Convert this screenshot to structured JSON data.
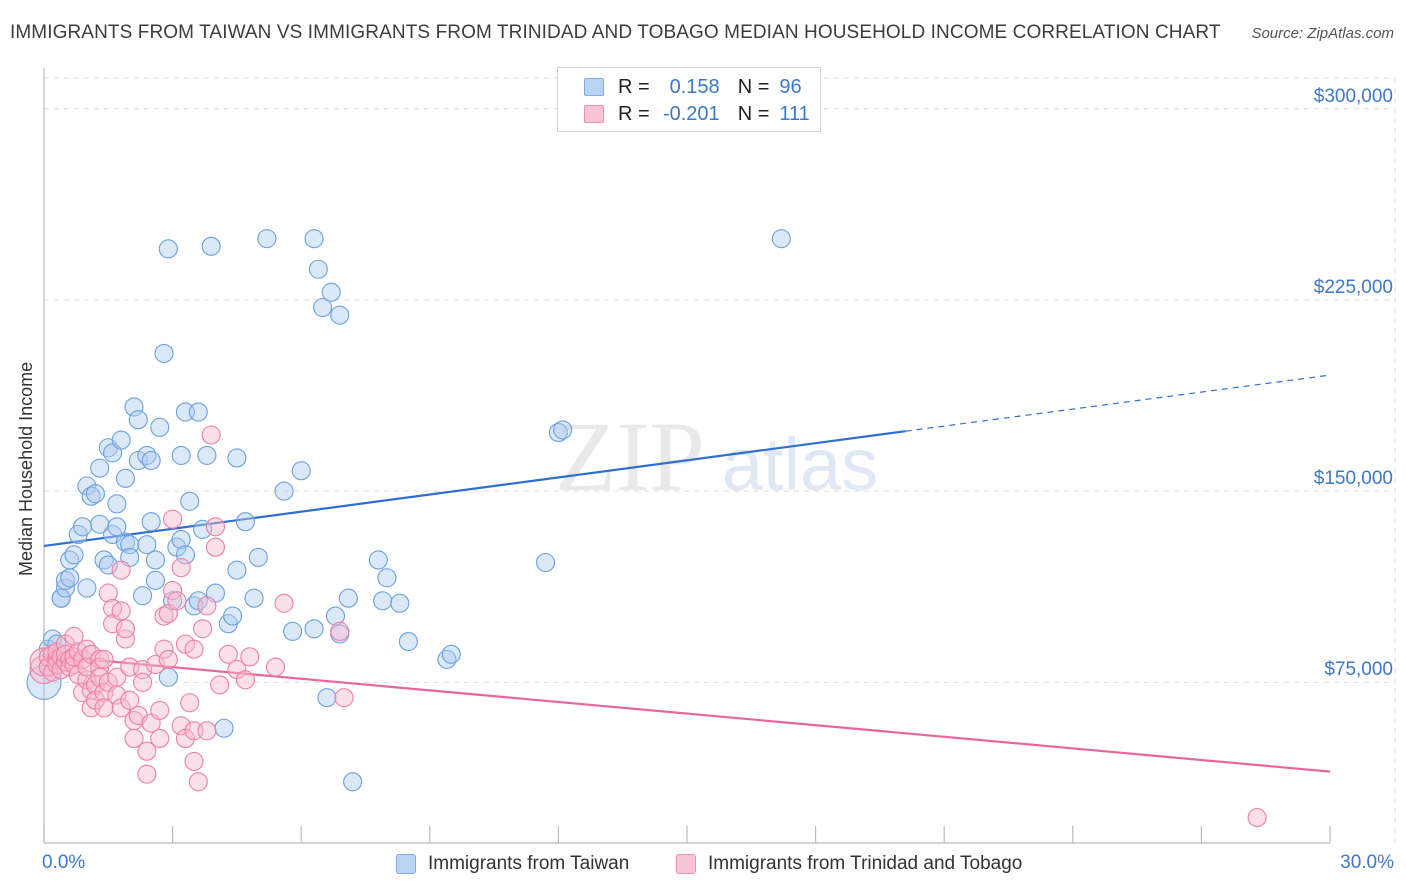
{
  "title": "IMMIGRANTS FROM TAIWAN VS IMMIGRANTS FROM TRINIDAD AND TOBAGO MEDIAN HOUSEHOLD INCOME CORRELATION CHART",
  "source": "Source: ZipAtlas.com",
  "watermark": {
    "zip": "ZIP",
    "atlas": "atlas"
  },
  "stats": [
    {
      "r_label": "R =",
      "r_value": "0.158",
      "n_label": "N =",
      "n_value": "96",
      "color": "#7aaee8",
      "fill": "#b9d3f3"
    },
    {
      "r_label": "R =",
      "r_value": "-0.201",
      "n_label": "N =",
      "n_value": "111",
      "color": "#f08fb0",
      "fill": "#f8c4d6"
    }
  ],
  "legend": [
    {
      "label": "Immigrants from Taiwan"
    },
    {
      "label": "Immigrants from Trinidad and Tobago"
    }
  ],
  "chart_data": {
    "type": "scatter",
    "ylabel": "Median Household Income",
    "xlim": [
      0,
      30
    ],
    "ylim": [
      12000,
      312000
    ],
    "x_tick_labels": [
      "0.0%",
      "30.0%"
    ],
    "y_tick_labels": [
      "$300,000",
      "$225,000",
      "$150,000",
      "$75,000"
    ],
    "y_tick_values": [
      300000,
      225000,
      150000,
      75000
    ],
    "grid": true,
    "series": [
      {
        "name": "Immigrants from Taiwan",
        "color": "#6aa0e0",
        "trend": {
          "x0": 0,
          "y0": 128500,
          "x1": 20.1,
          "y1": 173500,
          "dash_to_x": 30,
          "dash_to_y": 195500
        },
        "points": [
          [
            0.0,
            75000
          ],
          [
            0.1,
            88000
          ],
          [
            0.2,
            92000
          ],
          [
            0.3,
            90000
          ],
          [
            0.4,
            108000
          ],
          [
            0.4,
            108000
          ],
          [
            0.5,
            112000
          ],
          [
            0.5,
            115000
          ],
          [
            0.6,
            116000
          ],
          [
            0.6,
            123000
          ],
          [
            0.7,
            125000
          ],
          [
            0.8,
            133000
          ],
          [
            0.9,
            136000
          ],
          [
            1.0,
            152000
          ],
          [
            1.0,
            112000
          ],
          [
            1.1,
            148000
          ],
          [
            1.2,
            149000
          ],
          [
            1.3,
            159000
          ],
          [
            1.3,
            137000
          ],
          [
            1.4,
            123000
          ],
          [
            1.5,
            121000
          ],
          [
            1.5,
            167000
          ],
          [
            1.6,
            165000
          ],
          [
            1.6,
            133000
          ],
          [
            1.7,
            145000
          ],
          [
            1.7,
            136000
          ],
          [
            1.8,
            170000
          ],
          [
            1.9,
            155000
          ],
          [
            1.9,
            130000
          ],
          [
            2.0,
            129000
          ],
          [
            2.0,
            124000
          ],
          [
            2.1,
            183000
          ],
          [
            2.2,
            162000
          ],
          [
            2.2,
            178000
          ],
          [
            2.3,
            109000
          ],
          [
            2.4,
            164000
          ],
          [
            2.4,
            129000
          ],
          [
            2.5,
            162000
          ],
          [
            2.5,
            138000
          ],
          [
            2.6,
            123000
          ],
          [
            2.6,
            115000
          ],
          [
            2.7,
            175000
          ],
          [
            2.8,
            204000
          ],
          [
            2.9,
            77000
          ],
          [
            2.9,
            245000
          ],
          [
            3.0,
            107000
          ],
          [
            3.1,
            128000
          ],
          [
            3.2,
            164000
          ],
          [
            3.2,
            131000
          ],
          [
            3.3,
            181000
          ],
          [
            3.3,
            125000
          ],
          [
            3.4,
            146000
          ],
          [
            3.5,
            105000
          ],
          [
            3.6,
            107000
          ],
          [
            3.6,
            181000
          ],
          [
            3.7,
            135000
          ],
          [
            3.8,
            164000
          ],
          [
            3.9,
            246000
          ],
          [
            4.0,
            110000
          ],
          [
            4.2,
            57000
          ],
          [
            4.3,
            98000
          ],
          [
            4.4,
            101000
          ],
          [
            4.5,
            163000
          ],
          [
            4.5,
            119000
          ],
          [
            4.7,
            138000
          ],
          [
            4.9,
            108000
          ],
          [
            5.0,
            124000
          ],
          [
            5.2,
            249000
          ],
          [
            5.6,
            150000
          ],
          [
            5.8,
            95000
          ],
          [
            6.0,
            158000
          ],
          [
            6.3,
            96000
          ],
          [
            6.3,
            249000
          ],
          [
            6.4,
            237000
          ],
          [
            6.5,
            222000
          ],
          [
            6.6,
            69000
          ],
          [
            6.7,
            228000
          ],
          [
            6.8,
            101000
          ],
          [
            6.9,
            94000
          ],
          [
            6.9,
            219000
          ],
          [
            7.1,
            108000
          ],
          [
            7.2,
            36000
          ],
          [
            7.8,
            123000
          ],
          [
            7.9,
            107000
          ],
          [
            8.0,
            116000
          ],
          [
            8.3,
            106000
          ],
          [
            8.5,
            91000
          ],
          [
            9.4,
            84000
          ],
          [
            9.5,
            86000
          ],
          [
            11.7,
            122000
          ],
          [
            12.0,
            173000
          ],
          [
            12.1,
            174000
          ],
          [
            17.2,
            249000
          ]
        ]
      },
      {
        "name": "Immigrants from Trinidad and Tobago",
        "color": "#ee7fa6",
        "trend": {
          "x0": 0,
          "y0": 85500,
          "x1": 30,
          "y1": 40000
        },
        "points": [
          [
            0.0,
            80000
          ],
          [
            0.0,
            83000
          ],
          [
            0.1,
            85000
          ],
          [
            0.1,
            81000
          ],
          [
            0.2,
            86000
          ],
          [
            0.2,
            79000
          ],
          [
            0.3,
            84000
          ],
          [
            0.3,
            87000
          ],
          [
            0.3,
            82000
          ],
          [
            0.4,
            80000
          ],
          [
            0.4,
            85000
          ],
          [
            0.5,
            83000
          ],
          [
            0.5,
            90000
          ],
          [
            0.5,
            86000
          ],
          [
            0.6,
            84000
          ],
          [
            0.6,
            81000
          ],
          [
            0.7,
            82000
          ],
          [
            0.7,
            85000
          ],
          [
            0.7,
            93000
          ],
          [
            0.8,
            87000
          ],
          [
            0.8,
            78000
          ],
          [
            0.9,
            84000
          ],
          [
            0.9,
            71000
          ],
          [
            1.0,
            76000
          ],
          [
            1.0,
            81000
          ],
          [
            1.0,
            88000
          ],
          [
            1.1,
            65000
          ],
          [
            1.1,
            72000
          ],
          [
            1.1,
            86000
          ],
          [
            1.2,
            74000
          ],
          [
            1.2,
            68000
          ],
          [
            1.3,
            84000
          ],
          [
            1.3,
            81000
          ],
          [
            1.3,
            77000
          ],
          [
            1.4,
            71000
          ],
          [
            1.4,
            65000
          ],
          [
            1.4,
            84000
          ],
          [
            1.5,
            75000
          ],
          [
            1.5,
            110000
          ],
          [
            1.6,
            104000
          ],
          [
            1.6,
            98000
          ],
          [
            1.7,
            77000
          ],
          [
            1.7,
            70000
          ],
          [
            1.8,
            119000
          ],
          [
            1.8,
            103000
          ],
          [
            1.8,
            65000
          ],
          [
            1.9,
            92000
          ],
          [
            1.9,
            96000
          ],
          [
            2.0,
            81000
          ],
          [
            2.0,
            68000
          ],
          [
            2.1,
            60000
          ],
          [
            2.1,
            53000
          ],
          [
            2.2,
            62000
          ],
          [
            2.3,
            80000
          ],
          [
            2.3,
            75000
          ],
          [
            2.4,
            48000
          ],
          [
            2.4,
            39000
          ],
          [
            2.5,
            59000
          ],
          [
            2.6,
            82000
          ],
          [
            2.7,
            64000
          ],
          [
            2.7,
            53000
          ],
          [
            2.8,
            88000
          ],
          [
            2.8,
            101000
          ],
          [
            2.9,
            102000
          ],
          [
            2.9,
            84000
          ],
          [
            3.0,
            139000
          ],
          [
            3.0,
            111000
          ],
          [
            3.1,
            107000
          ],
          [
            3.2,
            120000
          ],
          [
            3.2,
            58000
          ],
          [
            3.3,
            90000
          ],
          [
            3.3,
            53000
          ],
          [
            3.4,
            67000
          ],
          [
            3.5,
            88000
          ],
          [
            3.5,
            44000
          ],
          [
            3.5,
            56000
          ],
          [
            3.6,
            36000
          ],
          [
            3.7,
            96000
          ],
          [
            3.8,
            105000
          ],
          [
            3.8,
            56000
          ],
          [
            3.9,
            172000
          ],
          [
            4.0,
            128000
          ],
          [
            4.0,
            136000
          ],
          [
            4.1,
            74000
          ],
          [
            4.3,
            86000
          ],
          [
            4.5,
            80000
          ],
          [
            4.7,
            76000
          ],
          [
            4.8,
            85000
          ],
          [
            5.4,
            81000
          ],
          [
            5.6,
            106000
          ],
          [
            6.9,
            95000
          ],
          [
            7.0,
            69000
          ],
          [
            28.3,
            22000
          ]
        ]
      }
    ]
  }
}
